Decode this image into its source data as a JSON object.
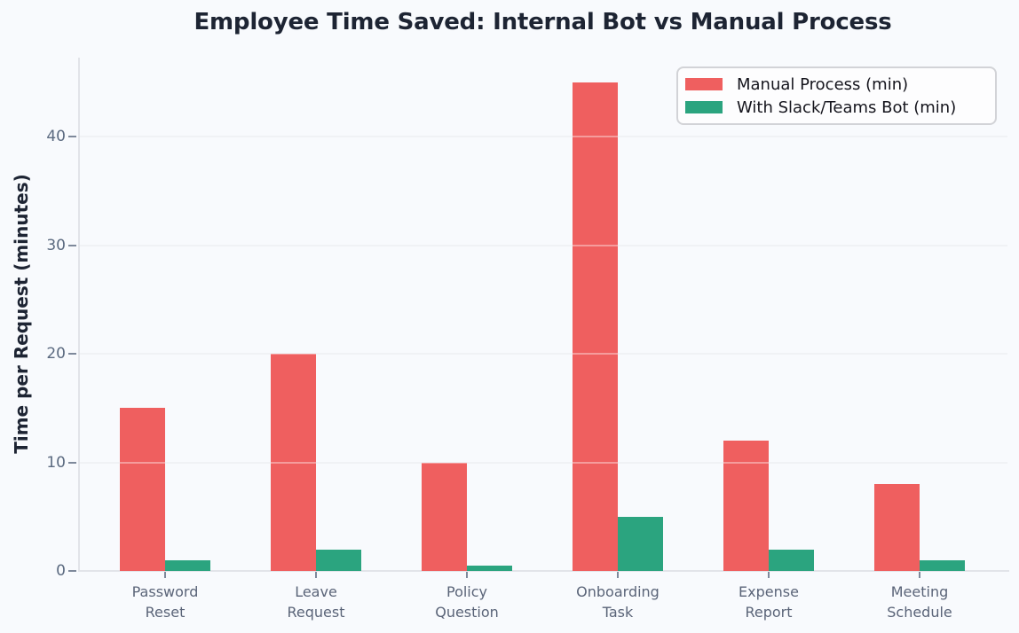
{
  "page": {
    "background": "#f8fafd"
  },
  "chart_data": {
    "type": "bar",
    "title": "Employee Time Saved: Internal Bot vs Manual Process",
    "ylabel": "Time per Request (minutes)",
    "xlabel": "",
    "categories": [
      "Password Reset",
      "Leave Request",
      "Policy Question",
      "Onboarding Task",
      "Expense Report",
      "Meeting Schedule"
    ],
    "category_label_lines": [
      [
        "Password",
        "Reset"
      ],
      [
        "Leave",
        "Request"
      ],
      [
        "Policy",
        "Question"
      ],
      [
        "Onboarding",
        "Task"
      ],
      [
        "Expense",
        "Report"
      ],
      [
        "Meeting",
        "Schedule"
      ]
    ],
    "series": [
      {
        "name": "Manual Process (min)",
        "color": "#ef5f5f",
        "values": [
          15,
          20,
          10,
          45,
          12,
          8
        ]
      },
      {
        "name": "With Slack/Teams Bot (min)",
        "color": "#2ba47f",
        "values": [
          1,
          2,
          0.5,
          5,
          2,
          1
        ]
      }
    ],
    "yticks": [
      0,
      10,
      20,
      30,
      40
    ],
    "ylim": [
      0,
      47.3
    ],
    "grid": "horizontal",
    "legend_position": "upper right",
    "colors": {
      "title_text": "#1d2433",
      "tick_text": "#5b6a80",
      "category_text": "#5a6478",
      "legend_text": "#15151d",
      "spine": "#e2e4e9",
      "gridline": "#e7eaef"
    }
  }
}
